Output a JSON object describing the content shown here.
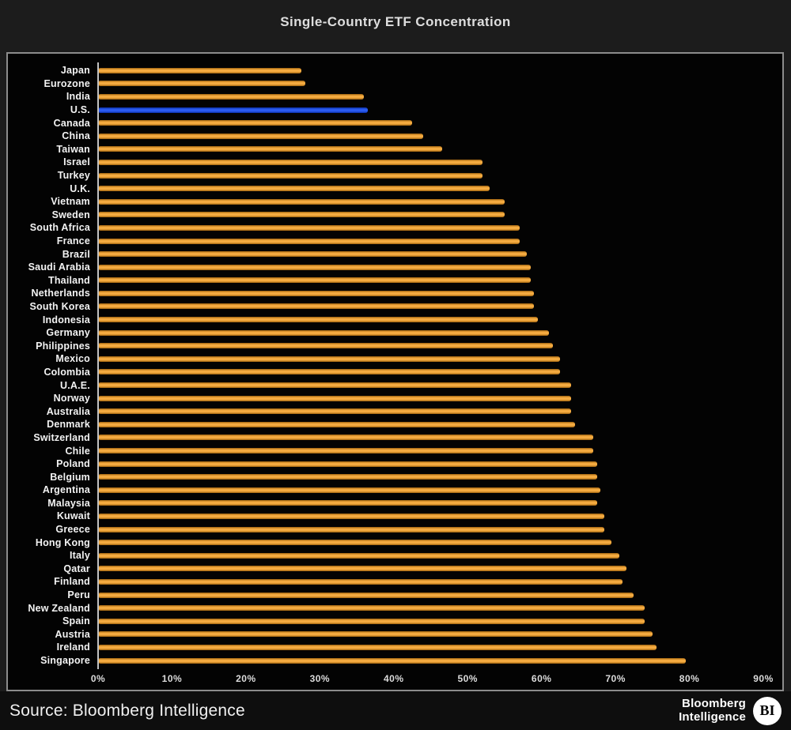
{
  "title": "Single-Country ETF Concentration",
  "chart_data": {
    "type": "bar",
    "orientation": "horizontal",
    "title": "Single-Country ETF Concentration",
    "xlabel": "",
    "ylabel": "",
    "unit": "%",
    "xlim": [
      0,
      90
    ],
    "grid": false,
    "x_ticks": [
      "0%",
      "10%",
      "20%",
      "30%",
      "40%",
      "50%",
      "60%",
      "70%",
      "80%",
      "90%"
    ],
    "bar_color": "#f2a33c",
    "highlight_color": "#2253e0",
    "highlight_category": "U.S.",
    "categories": [
      "Japan",
      "Eurozone",
      "India",
      "U.S.",
      "Canada",
      "China",
      "Taiwan",
      "Israel",
      "Turkey",
      "U.K.",
      "Vietnam",
      "Sweden",
      "South Africa",
      "France",
      "Brazil",
      "Saudi Arabia",
      "Thailand",
      "Netherlands",
      "South Korea",
      "Indonesia",
      "Germany",
      "Philippines",
      "Mexico",
      "Colombia",
      "U.A.E.",
      "Norway",
      "Australia",
      "Denmark",
      "Switzerland",
      "Chile",
      "Poland",
      "Belgium",
      "Argentina",
      "Malaysia",
      "Kuwait",
      "Greece",
      "Hong Kong",
      "Italy",
      "Qatar",
      "Finland",
      "Peru",
      "New Zealand",
      "Spain",
      "Austria",
      "Ireland",
      "Singapore"
    ],
    "values": [
      27.5,
      28,
      36,
      36.5,
      42.5,
      44,
      46.5,
      52,
      52,
      53,
      55,
      55,
      57,
      57,
      58,
      58.5,
      58.5,
      59,
      59,
      59.5,
      61,
      61.5,
      62.5,
      62.5,
      64,
      64,
      64,
      64.5,
      67,
      67,
      67.5,
      67.5,
      68,
      67.5,
      68.5,
      68.5,
      69.5,
      70.5,
      71.5,
      71,
      72.5,
      74,
      74,
      75,
      75.5,
      79.5
    ]
  },
  "footer": {
    "source": "Source: Bloomberg Intelligence",
    "logo_line1": "Bloomberg",
    "logo_line2": "Intelligence",
    "logo_badge": "BI"
  }
}
